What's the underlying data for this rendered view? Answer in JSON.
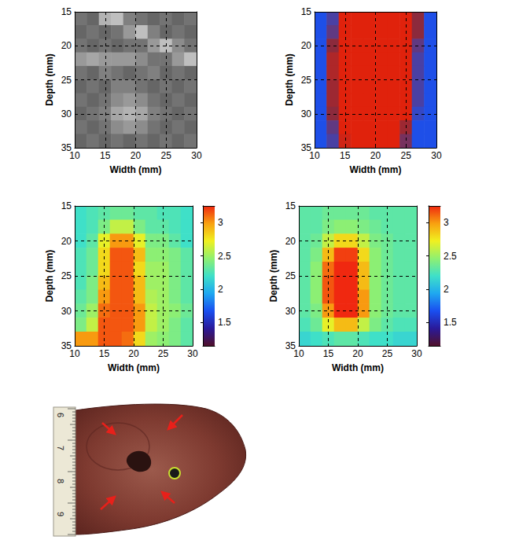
{
  "chart_data": [
    {
      "type": "heatmap",
      "x_label": "Width (mm)",
      "y_label": "Depth (mm)",
      "xlim": [
        10,
        30
      ],
      "ylim": [
        15,
        35
      ],
      "xticks": [
        10,
        15,
        20,
        25,
        30
      ],
      "yticks": [
        15,
        20,
        25,
        30,
        35
      ],
      "grid": true,
      "colors": [
        "#000000",
        "#ffffff"
      ],
      "color_range": [
        0,
        1
      ],
      "x": [
        11,
        13,
        15,
        17,
        19,
        21,
        23,
        25,
        27,
        29
      ],
      "y": [
        16,
        18,
        20,
        22,
        24,
        26,
        28,
        30,
        32,
        34
      ],
      "cells": [
        [
          0.45,
          0.4,
          0.7,
          0.75,
          0.5,
          0.45,
          0.4,
          0.45,
          0.4,
          0.45
        ],
        [
          0.4,
          0.45,
          0.4,
          0.45,
          0.6,
          0.75,
          0.5,
          0.4,
          0.45,
          0.4
        ],
        [
          0.45,
          0.4,
          0.45,
          0.4,
          0.45,
          0.45,
          0.6,
          0.75,
          0.55,
          0.45
        ],
        [
          0.6,
          0.65,
          0.6,
          0.6,
          0.6,
          0.55,
          0.45,
          0.45,
          0.6,
          0.75
        ],
        [
          0.45,
          0.4,
          0.5,
          0.45,
          0.4,
          0.45,
          0.5,
          0.4,
          0.45,
          0.4
        ],
        [
          0.4,
          0.45,
          0.4,
          0.5,
          0.5,
          0.45,
          0.4,
          0.45,
          0.4,
          0.45
        ],
        [
          0.45,
          0.4,
          0.45,
          0.55,
          0.6,
          0.55,
          0.45,
          0.4,
          0.45,
          0.4
        ],
        [
          0.4,
          0.45,
          0.5,
          0.65,
          0.7,
          0.65,
          0.5,
          0.45,
          0.4,
          0.45
        ],
        [
          0.45,
          0.4,
          0.45,
          0.55,
          0.6,
          0.55,
          0.45,
          0.4,
          0.45,
          0.4
        ],
        [
          0.4,
          0.45,
          0.4,
          0.45,
          0.4,
          0.45,
          0.4,
          0.45,
          0.4,
          0.45
        ]
      ]
    },
    {
      "type": "heatmap",
      "x_label": "Width (mm)",
      "y_label": "Depth (mm)",
      "xlim": [
        10,
        30
      ],
      "ylim": [
        15,
        35
      ],
      "xticks": [
        10,
        15,
        20,
        25,
        30
      ],
      "yticks": [
        15,
        20,
        25,
        30,
        35
      ],
      "grid": true,
      "colors": [
        "#1e4fe8",
        "#8c2a3c",
        "#e0220c"
      ],
      "color_range": [
        0,
        1
      ],
      "x": [
        11,
        13,
        15,
        17,
        19,
        21,
        23,
        25,
        27,
        29
      ],
      "y": [
        16,
        18,
        20,
        22,
        24,
        26,
        28,
        30,
        32,
        34
      ],
      "cells": [
        [
          0,
          0.2,
          1,
          1,
          1,
          1,
          1,
          1,
          0.5,
          0
        ],
        [
          0,
          0.3,
          1,
          1,
          1,
          1,
          1,
          1,
          0.5,
          0
        ],
        [
          0,
          0.5,
          1,
          1,
          1,
          1,
          1,
          1,
          0.3,
          0
        ],
        [
          0,
          0.7,
          1,
          1,
          1,
          1,
          1,
          1,
          0.2,
          0
        ],
        [
          0,
          0.7,
          1,
          1,
          1,
          1,
          1,
          1,
          0.2,
          0
        ],
        [
          0,
          0.6,
          1,
          1,
          1,
          1,
          1,
          1,
          0.2,
          0
        ],
        [
          0,
          0.6,
          1,
          1,
          1,
          1,
          1,
          1,
          0.2,
          0
        ],
        [
          0,
          0.5,
          1,
          1,
          1,
          1,
          1,
          1,
          0.1,
          0
        ],
        [
          0,
          0.3,
          1,
          1,
          1,
          1,
          1,
          0.6,
          0,
          0
        ],
        [
          0,
          0.2,
          0.9,
          1,
          1,
          1,
          1,
          0.4,
          0,
          0
        ]
      ]
    },
    {
      "type": "heatmap",
      "x_label": "Width (mm)",
      "y_label": "Depth (mm)",
      "xlim": [
        10,
        30
      ],
      "ylim": [
        15,
        35
      ],
      "xticks": [
        10,
        15,
        20,
        25,
        30
      ],
      "yticks": [
        15,
        20,
        25,
        30,
        35
      ],
      "grid": true,
      "colors": [
        "#50102a",
        "#2a1a9a",
        "#1a4ff0",
        "#1fa8f0",
        "#3fe0c8",
        "#90f070",
        "#f0f020",
        "#f8a010",
        "#f02810"
      ],
      "colorbar": {
        "range": [
          1.15,
          3.25
        ],
        "ticks": [
          1.5,
          2,
          2.5,
          3
        ]
      },
      "x": [
        11,
        13,
        15,
        17,
        19,
        21,
        23,
        25,
        27,
        29
      ],
      "y": [
        16,
        18,
        20,
        22,
        24,
        26,
        28,
        30,
        32,
        34
      ],
      "cells": [
        [
          2.2,
          2.25,
          2.3,
          2.35,
          2.35,
          2.3,
          2.3,
          2.25,
          2.25,
          2.2
        ],
        [
          2.2,
          2.25,
          2.4,
          2.6,
          2.6,
          2.4,
          2.3,
          2.3,
          2.25,
          2.2
        ],
        [
          2.2,
          2.3,
          2.7,
          3.0,
          3.0,
          2.7,
          2.4,
          2.4,
          2.3,
          2.2
        ],
        [
          2.25,
          2.35,
          2.8,
          3.15,
          3.15,
          2.9,
          2.45,
          2.45,
          2.4,
          2.3
        ],
        [
          2.25,
          2.35,
          2.8,
          3.15,
          3.15,
          2.8,
          2.5,
          2.5,
          2.4,
          2.3
        ],
        [
          2.25,
          2.4,
          2.9,
          3.15,
          3.15,
          2.9,
          2.5,
          2.5,
          2.4,
          2.3
        ],
        [
          2.3,
          2.4,
          3.0,
          3.15,
          3.15,
          2.9,
          2.55,
          2.5,
          2.4,
          2.3
        ],
        [
          2.35,
          2.5,
          3.1,
          3.15,
          3.15,
          3.0,
          2.6,
          2.5,
          2.45,
          2.35
        ],
        [
          2.4,
          2.6,
          3.15,
          3.15,
          3.15,
          3.0,
          2.6,
          2.5,
          2.4,
          2.3
        ],
        [
          3.0,
          3.0,
          3.15,
          3.15,
          3.1,
          2.8,
          2.5,
          2.45,
          2.4,
          2.3
        ]
      ]
    },
    {
      "type": "heatmap",
      "x_label": "Width (mm)",
      "y_label": "Depth (mm)",
      "xlim": [
        10,
        30
      ],
      "ylim": [
        15,
        35
      ],
      "xticks": [
        10,
        15,
        20,
        25,
        30
      ],
      "yticks": [
        15,
        20,
        25,
        30,
        35
      ],
      "grid": true,
      "colors": [
        "#50102a",
        "#2a1a9a",
        "#1a4ff0",
        "#1fa8f0",
        "#3fe0c8",
        "#90f070",
        "#f0f020",
        "#f8a010",
        "#f02810"
      ],
      "colorbar": {
        "range": [
          1.15,
          3.25
        ],
        "ticks": [
          1.5,
          2,
          2.5,
          3
        ]
      },
      "x": [
        11,
        13,
        15,
        17,
        19,
        21,
        23,
        25,
        27,
        29
      ],
      "y": [
        16,
        18,
        20,
        22,
        24,
        26,
        28,
        30,
        32,
        34
      ],
      "cells": [
        [
          2.3,
          2.3,
          2.35,
          2.35,
          2.35,
          2.35,
          2.3,
          2.3,
          2.3,
          2.3
        ],
        [
          2.3,
          2.3,
          2.4,
          2.45,
          2.45,
          2.4,
          2.35,
          2.3,
          2.3,
          2.3
        ],
        [
          2.3,
          2.35,
          2.6,
          2.8,
          2.8,
          2.6,
          2.4,
          2.35,
          2.3,
          2.3
        ],
        [
          2.3,
          2.4,
          2.9,
          3.2,
          3.2,
          2.8,
          2.45,
          2.35,
          2.3,
          2.3
        ],
        [
          2.3,
          2.45,
          3.1,
          3.25,
          3.25,
          2.9,
          2.45,
          2.35,
          2.3,
          2.3
        ],
        [
          2.3,
          2.45,
          3.15,
          3.25,
          3.25,
          2.9,
          2.45,
          2.35,
          2.3,
          2.3
        ],
        [
          2.3,
          2.45,
          3.15,
          3.25,
          3.25,
          3.0,
          2.45,
          2.35,
          2.3,
          2.3
        ],
        [
          2.3,
          2.4,
          3.0,
          3.25,
          3.25,
          3.0,
          2.45,
          2.35,
          2.3,
          2.3
        ],
        [
          2.25,
          2.35,
          2.7,
          2.9,
          2.9,
          2.6,
          2.4,
          2.3,
          2.25,
          2.25
        ],
        [
          2.15,
          2.2,
          2.25,
          2.3,
          2.3,
          2.25,
          2.2,
          2.2,
          2.15,
          2.15
        ]
      ]
    }
  ],
  "photo": {
    "ruler_labels": [
      "6",
      "7",
      "8",
      "9"
    ]
  }
}
